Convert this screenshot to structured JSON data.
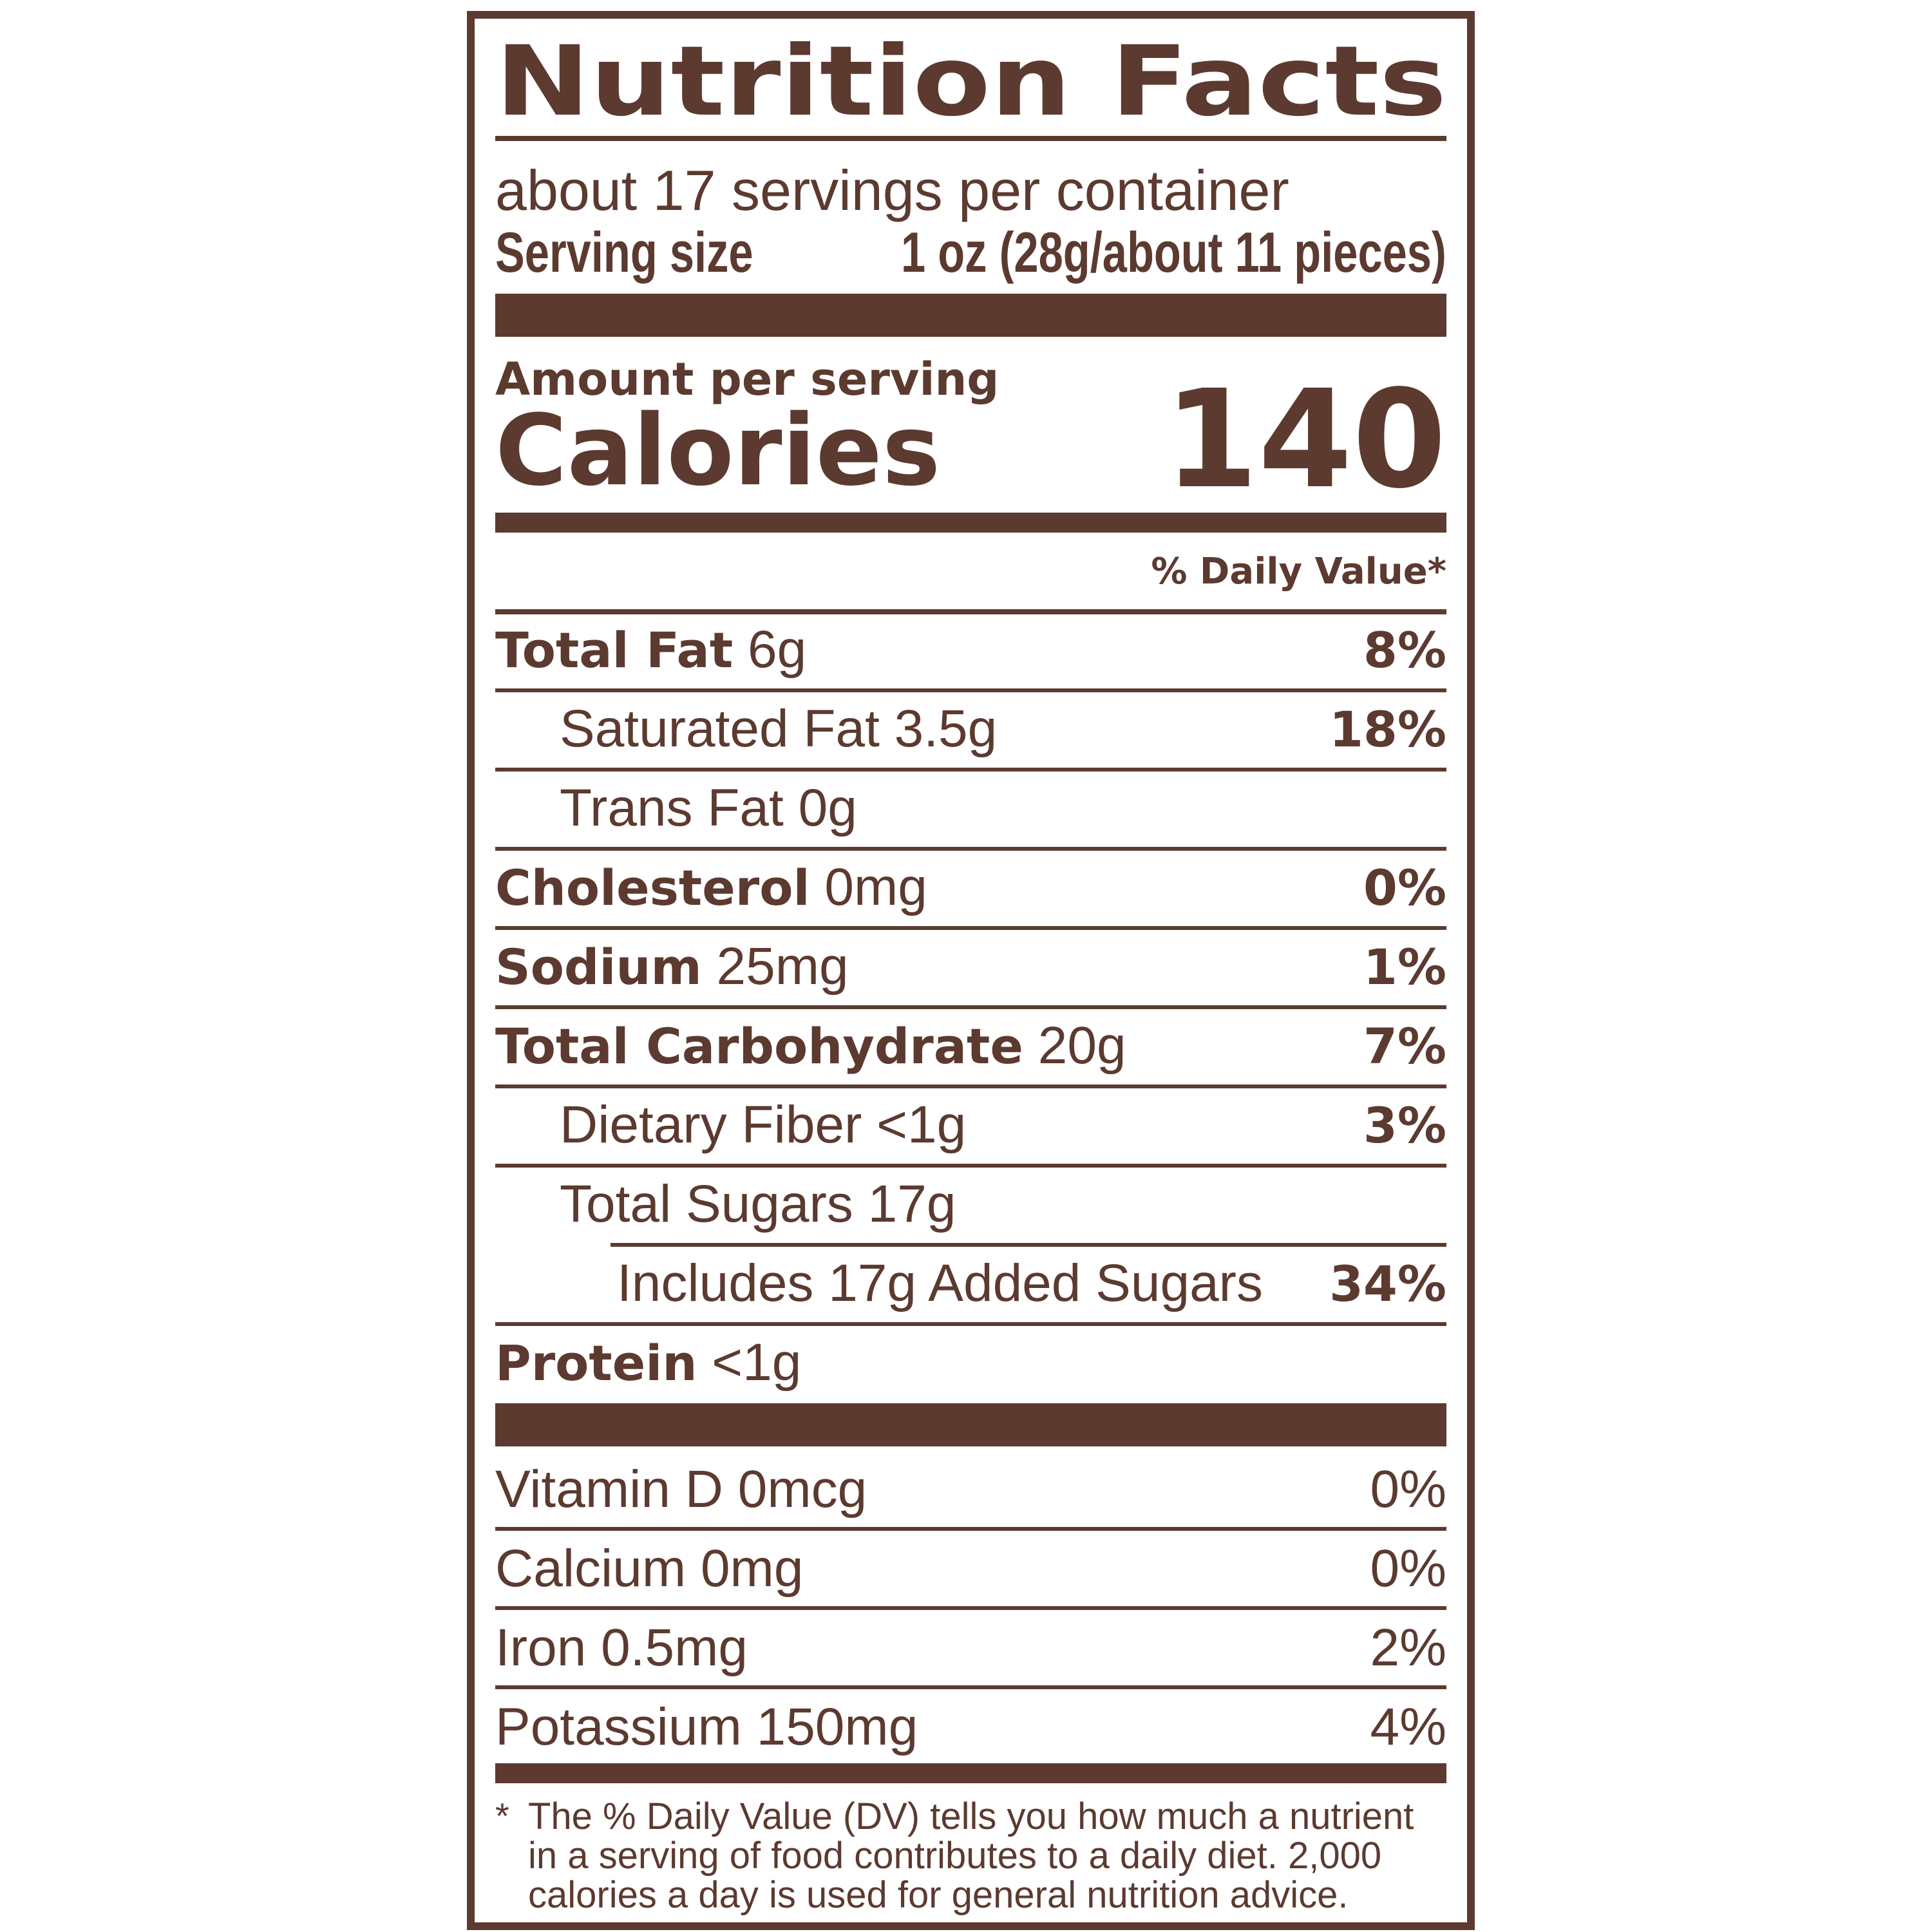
{
  "title": "Nutrition Facts",
  "servings_per_container": "about 17 servings per container",
  "serving_size_label": "Serving size",
  "serving_size_value": "1 oz (28g/about 11 pieces)",
  "amount_per_serving": "Amount per serving",
  "calories_label": "Calories",
  "calories_value": "140",
  "daily_value_header": "% Daily Value*",
  "nutrients": [
    {
      "name": "Total Fat",
      "amount": "6g",
      "dv": "8%",
      "bold": true,
      "indent": 0
    },
    {
      "name": "Saturated Fat",
      "amount": "3.5g",
      "dv": "18%",
      "bold": false,
      "indent": 1
    },
    {
      "name": "Trans Fat",
      "amount": "0g",
      "dv": "",
      "bold": false,
      "indent": 1
    },
    {
      "name": "Cholesterol",
      "amount": "0mg",
      "dv": "0%",
      "bold": true,
      "indent": 0
    },
    {
      "name": "Sodium",
      "amount": "25mg",
      "dv": "1%",
      "bold": true,
      "indent": 0
    },
    {
      "name": "Total Carbohydrate",
      "amount": "20g",
      "dv": "7%",
      "bold": true,
      "indent": 0
    },
    {
      "name": "Dietary Fiber",
      "amount": "<1g",
      "dv": "3%",
      "bold": false,
      "indent": 1
    },
    {
      "name": "Total Sugars",
      "amount": "17g",
      "dv": "",
      "bold": false,
      "indent": 1
    },
    {
      "name": "Includes 17g Added Sugars",
      "amount": "",
      "dv": "34%",
      "bold": false,
      "indent": 2
    },
    {
      "name": "Protein",
      "amount": "<1g",
      "dv": "",
      "bold": true,
      "indent": 0
    }
  ],
  "vitamins": [
    {
      "name": "Vitamin D 0mcg",
      "dv": "0%"
    },
    {
      "name": "Calcium 0mg",
      "dv": "0%"
    },
    {
      "name": "Iron 0.5mg",
      "dv": "2%"
    },
    {
      "name": "Potassium 150mg",
      "dv": "4%"
    }
  ],
  "footnote_marker": "*",
  "footnote_lines": [
    "The % Daily Value (DV) tells you how much a nutrient",
    "in a serving of food contributes to a daily diet. 2,000",
    "calories a day is used for general nutrition advice."
  ],
  "colors": {
    "ink": "#5c3a30",
    "background": "#ffffff"
  }
}
